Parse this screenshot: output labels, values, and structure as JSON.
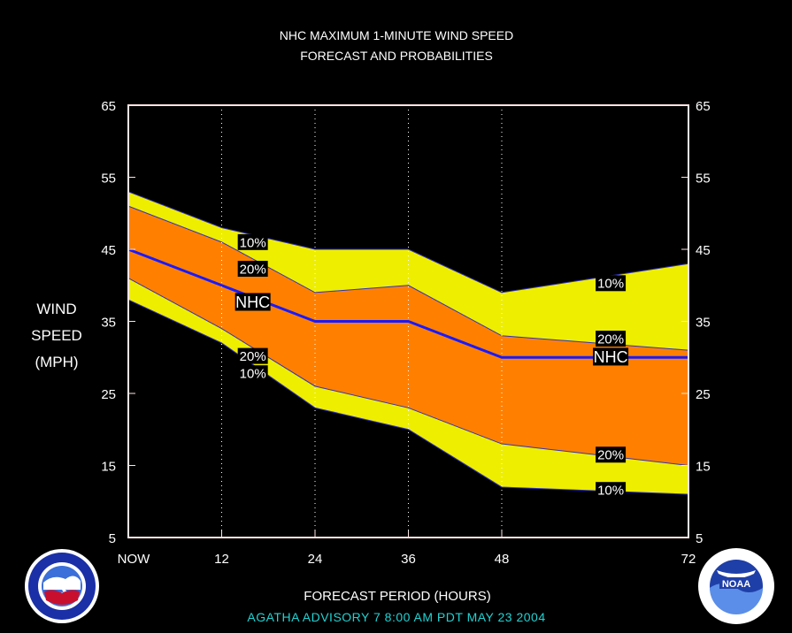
{
  "title_line1": "NHC MAXIMUM 1-MINUTE WIND SPEED",
  "title_line2": "FORECAST AND PROBABILITIES",
  "y_label_lines": [
    "WIND",
    "SPEED",
    "(MPH)"
  ],
  "x_title": "FORECAST PERIOD (HOURS)",
  "advisory": "AGATHA   ADVISORY  7 8:00  AM  PDT  MAY  23  2004",
  "colors": {
    "outer_band": "#eeee00",
    "inner_band": "#ff8000",
    "nhc_line": "#1a1aff",
    "grid": "#ffffff",
    "axis_frame": "#ffe4e4",
    "advisory_text": "#22d3d3"
  },
  "chart_data": {
    "type": "area",
    "title": "NHC MAXIMUM 1-MINUTE WIND SPEED FORECAST AND PROBABILITIES",
    "xlabel": "FORECAST PERIOD (HOURS)",
    "ylabel": "WIND SPEED (MPH)",
    "xlim": [
      0,
      72
    ],
    "ylim": [
      5,
      65
    ],
    "x_ticks": [
      {
        "value": 0,
        "label": "NOW"
      },
      {
        "value": 12,
        "label": "12"
      },
      {
        "value": 24,
        "label": "24"
      },
      {
        "value": 36,
        "label": "36"
      },
      {
        "value": 48,
        "label": "48"
      },
      {
        "value": 72,
        "label": "72"
      }
    ],
    "y_ticks": [
      5,
      15,
      25,
      35,
      45,
      55,
      65
    ],
    "grid_x": [
      12,
      24,
      36,
      48
    ],
    "x": [
      0,
      12,
      24,
      36,
      48,
      72
    ],
    "series": [
      {
        "name": "10%",
        "role": "upper",
        "values": [
          53,
          48,
          45,
          45,
          39,
          43
        ]
      },
      {
        "name": "20%",
        "role": "upper",
        "values": [
          51,
          46,
          39,
          40,
          33,
          31
        ]
      },
      {
        "name": "NHC",
        "role": "forecast",
        "values": [
          45,
          40,
          35,
          35,
          30,
          30
        ]
      },
      {
        "name": "20%",
        "role": "lower",
        "values": [
          41,
          34,
          26,
          23,
          18,
          15
        ]
      },
      {
        "name": "10%",
        "role": "lower",
        "values": [
          38,
          32,
          23,
          20,
          12,
          11
        ]
      }
    ],
    "annotations": [
      {
        "text": "10%",
        "x": 16,
        "y": 46
      },
      {
        "text": "20%",
        "x": 16,
        "y": 42.3
      },
      {
        "text": "NHC",
        "x": 16,
        "y": 37.7
      },
      {
        "text": "20%",
        "x": 16,
        "y": 30.2
      },
      {
        "text": "10%",
        "x": 16,
        "y": 27.8
      },
      {
        "text": "10%",
        "x": 62,
        "y": 40.3
      },
      {
        "text": "20%",
        "x": 62,
        "y": 32.6
      },
      {
        "text": "NHC",
        "x": 62,
        "y": 30.1
      },
      {
        "text": "20%",
        "x": 62,
        "y": 16.5
      },
      {
        "text": "10%",
        "x": 62,
        "y": 11.6
      }
    ]
  }
}
